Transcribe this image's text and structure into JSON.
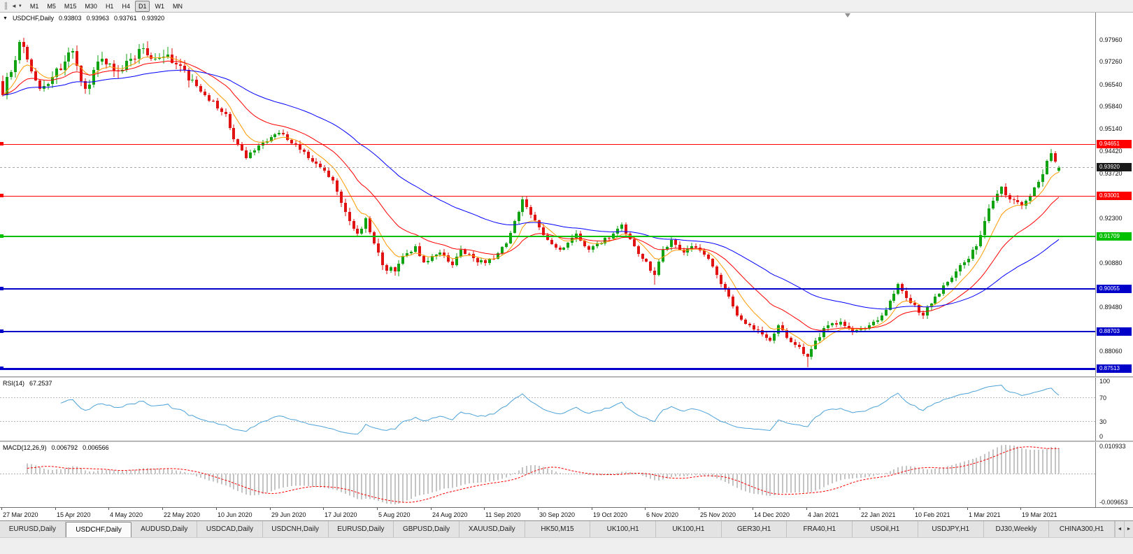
{
  "toolbar": {
    "timeframes": [
      "M1",
      "M5",
      "M15",
      "M30",
      "H1",
      "H4",
      "D1",
      "W1",
      "MN"
    ],
    "active": "D1"
  },
  "chart": {
    "title_symbol": "USDCHF,Daily",
    "ohlc": {
      "open": "0.93803",
      "high": "0.93963",
      "low": "0.93761",
      "close": "0.93920"
    }
  },
  "rsi_panel": {
    "title": "RSI(14)",
    "value": "67.2537"
  },
  "macd_panel": {
    "title": "MACD(12,26,9)",
    "value_macd": "0.006792",
    "value_signal": "0.006566"
  },
  "icons": {
    "title_arrow": "▼",
    "toolbar_left": "◄",
    "toolbar_caret": "▼",
    "tab_prev": "◄",
    "tab_next": "►"
  },
  "tabs": [
    "EURUSD,Daily",
    "USDCHF,Daily",
    "AUDUSD,Daily",
    "USDCAD,Daily",
    "USDCNH,Daily",
    "EURUSD,Daily",
    "GBPUSD,Daily",
    "XAUUSD,Daily",
    "HK50,M15",
    "UK100,H1",
    "UK100,H1",
    "GER30,H1",
    "FRA40,H1",
    "USOil,H1",
    "USDJPY,H1",
    "DJ30,Weekly",
    "CHINA300,H1"
  ],
  "active_tab_index": 1,
  "chart_data": {
    "type": "candlestick",
    "symbol": "USDCHF",
    "timeframe": "Daily",
    "ylim": [
      0.8736,
      0.9869
    ],
    "price_ticks": [
      "0.97960",
      "0.97260",
      "0.96540",
      "0.95840",
      "0.95140",
      "0.94420",
      "0.93720",
      "0.92300",
      "0.90880",
      "0.89480",
      "0.88060"
    ],
    "current_price": "0.93920",
    "current_price_value": 0.9392,
    "hlines": [
      {
        "price": "0.94651",
        "value": 0.94651,
        "color": "#ff0000",
        "width": 1
      },
      {
        "price": "0.93001",
        "value": 0.93001,
        "color": "#ff0000",
        "width": 1
      },
      {
        "price": "0.91709",
        "value": 0.91709,
        "color": "#00c000",
        "width": 2
      },
      {
        "price": "0.90055",
        "value": 0.90055,
        "color": "#0000c8",
        "width": 2
      },
      {
        "price": "0.88703",
        "value": 0.88703,
        "color": "#0000c8",
        "width": 2
      },
      {
        "price": "0.87513",
        "value": 0.87513,
        "color": "#0000c8",
        "width": 3
      }
    ],
    "x_labels": [
      "27 Mar 2020",
      "15 Apr 2020",
      "4 May 2020",
      "22 May 2020",
      "10 Jun 2020",
      "29 Jun 2020",
      "17 Jul 2020",
      "5 Aug 2020",
      "24 Aug 2020",
      "11 Sep 2020",
      "30 Sep 2020",
      "19 Oct 2020",
      "6 Nov 2020",
      "25 Nov 2020",
      "14 Dec 2020",
      "4 Jan 2021",
      "22 Jan 2021",
      "10 Feb 2021",
      "1 Mar 2021",
      "19 Mar 2021"
    ],
    "bars_per_label": 13,
    "close_waypoints": [
      [
        0,
        0.962
      ],
      [
        4,
        0.979
      ],
      [
        9,
        0.964
      ],
      [
        14,
        0.97
      ],
      [
        17,
        0.976
      ],
      [
        20,
        0.964
      ],
      [
        24,
        0.9735
      ],
      [
        29,
        0.97
      ],
      [
        34,
        0.977
      ],
      [
        36,
        0.9735
      ],
      [
        40,
        0.975
      ],
      [
        44,
        0.97
      ],
      [
        49,
        0.962
      ],
      [
        54,
        0.956
      ],
      [
        56,
        0.948
      ],
      [
        59,
        0.942
      ],
      [
        62,
        0.946
      ],
      [
        67,
        0.95
      ],
      [
        71,
        0.9465
      ],
      [
        74,
        0.942
      ],
      [
        78,
        0.938
      ],
      [
        80,
        0.935
      ],
      [
        83,
        0.925
      ],
      [
        86,
        0.918
      ],
      [
        88,
        0.923
      ],
      [
        90,
        0.915
      ],
      [
        92,
        0.908
      ],
      [
        95,
        0.906
      ],
      [
        97,
        0.911
      ],
      [
        100,
        0.914
      ],
      [
        102,
        0.909
      ],
      [
        106,
        0.912
      ],
      [
        109,
        0.908
      ],
      [
        111,
        0.913
      ],
      [
        115,
        0.909
      ],
      [
        119,
        0.91
      ],
      [
        122,
        0.915
      ],
      [
        124,
        0.922
      ],
      [
        126,
        0.929
      ],
      [
        130,
        0.92
      ],
      [
        132,
        0.916
      ],
      [
        135,
        0.913
      ],
      [
        139,
        0.918
      ],
      [
        142,
        0.913
      ],
      [
        145,
        0.915
      ],
      [
        148,
        0.918
      ],
      [
        150,
        0.921
      ],
      [
        153,
        0.914
      ],
      [
        155,
        0.91
      ],
      [
        158,
        0.905
      ],
      [
        160,
        0.913
      ],
      [
        162,
        0.916
      ],
      [
        165,
        0.912
      ],
      [
        167,
        0.914
      ],
      [
        171,
        0.91
      ],
      [
        173,
        0.905
      ],
      [
        176,
        0.898
      ],
      [
        178,
        0.892
      ],
      [
        181,
        0.889
      ],
      [
        184,
        0.886
      ],
      [
        186,
        0.884
      ],
      [
        188,
        0.889
      ],
      [
        190,
        0.885
      ],
      [
        193,
        0.882
      ],
      [
        195,
        0.879
      ],
      [
        197,
        0.884
      ],
      [
        199,
        0.888
      ],
      [
        203,
        0.89
      ],
      [
        206,
        0.887
      ],
      [
        210,
        0.889
      ],
      [
        213,
        0.892
      ],
      [
        217,
        0.902
      ],
      [
        220,
        0.896
      ],
      [
        223,
        0.892
      ],
      [
        226,
        0.898
      ],
      [
        230,
        0.904
      ],
      [
        233,
        0.909
      ],
      [
        236,
        0.914
      ],
      [
        239,
        0.926
      ],
      [
        242,
        0.933
      ],
      [
        244,
        0.929
      ],
      [
        247,
        0.927
      ],
      [
        249,
        0.93
      ],
      [
        252,
        0.937
      ],
      [
        254,
        0.9435
      ],
      [
        256,
        0.9392
      ]
    ],
    "extremes": {
      "high": 0.9796,
      "high_index": 4,
      "low": 0.8757,
      "low_index": 195
    },
    "spikes": [
      {
        "index": 126,
        "high": 0.9296
      },
      {
        "index": 158,
        "low": 0.9018
      }
    ],
    "last_bar": [
      0.93803,
      0.93963,
      0.93761,
      0.9392
    ],
    "candle_colors": {
      "up": "#12a312",
      "down": "#e01212"
    },
    "moving_averages": [
      {
        "period": 8,
        "color": "#ff9900"
      },
      {
        "period": 21,
        "color": "#ff0000"
      },
      {
        "period": 55,
        "color": "#0000ff"
      }
    ],
    "rsi": {
      "period": 14,
      "color": "#4da2d8",
      "levels": [
        70,
        30
      ],
      "axis_labels": [
        "100",
        "70",
        "30",
        "0"
      ],
      "range": [
        0,
        100
      ]
    },
    "macd": {
      "fast": 12,
      "slow": 26,
      "signal": 9,
      "axis_labels": [
        "0.010933",
        "-0.009653"
      ],
      "hist_color": "#c4c4c4",
      "signal_color": "#ff0000"
    }
  }
}
